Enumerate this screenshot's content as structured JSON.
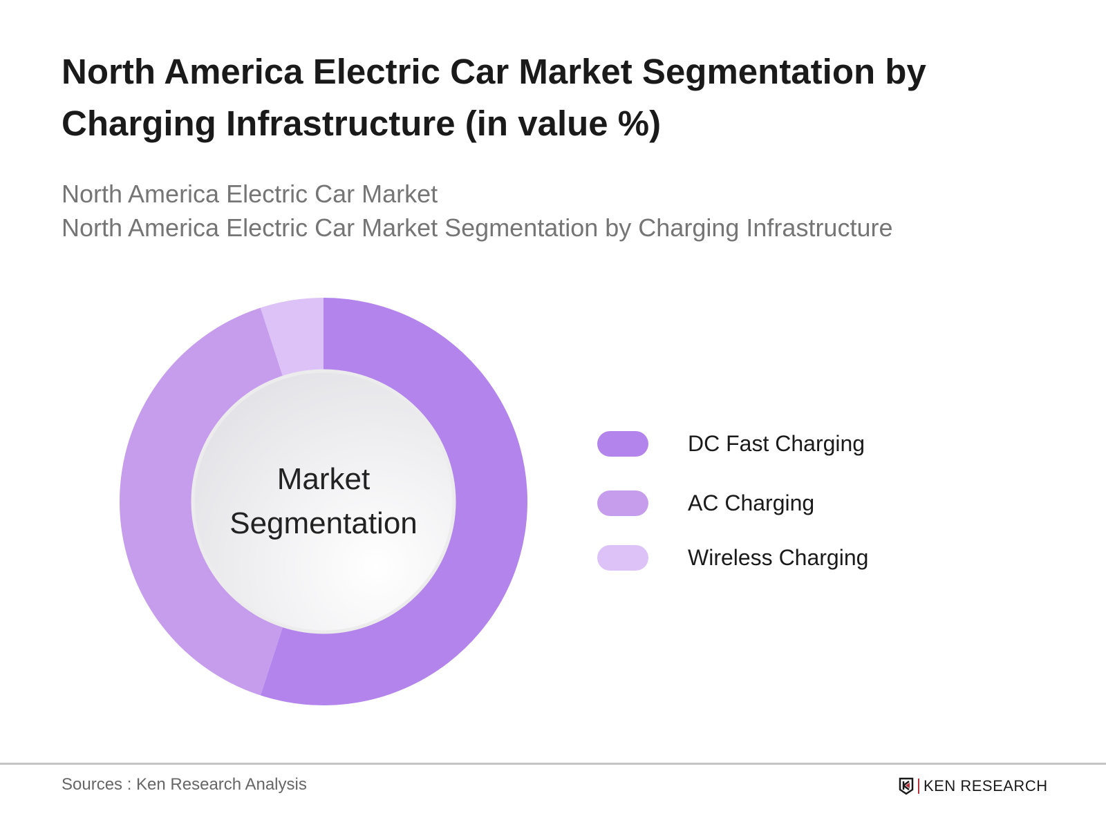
{
  "header": {
    "title": "North America Electric Car Market Segmentation by Charging Infrastructure (in value %)",
    "subtitle_line1": "North America Electric Car Market",
    "subtitle_line2": "North America Electric Car Market Segmentation by Charging Infrastructure"
  },
  "chart_data": {
    "type": "pie",
    "variant": "donut",
    "title": "North America Electric Car Market Segmentation by Charging Infrastructure (in value %)",
    "center_label": "Market Segmentation",
    "categories": [
      "DC Fast Charging",
      "AC Charging",
      "Wireless Charging"
    ],
    "values": [
      55,
      40,
      5
    ],
    "colors": [
      "#b385ec",
      "#c69ded",
      "#dcc2f6"
    ],
    "legend_position": "right"
  },
  "footer": {
    "source": "Sources : Ken Research Analysis",
    "logo_text": "KEN RESEARCH"
  }
}
